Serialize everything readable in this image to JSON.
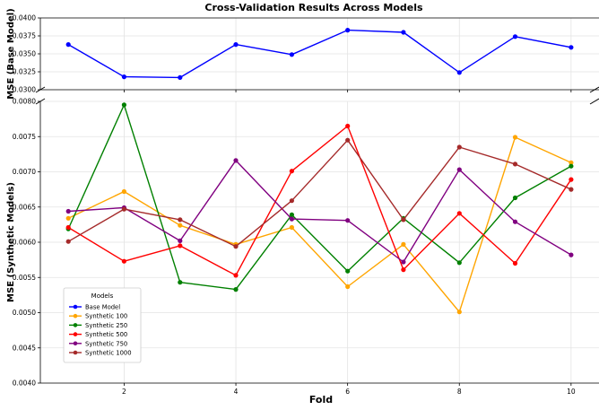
{
  "chart_data": {
    "type": "line",
    "title": "Cross-Validation Results Across Models",
    "xlabel": "Fold",
    "x": [
      1,
      2,
      3,
      4,
      5,
      6,
      7,
      8,
      9,
      10
    ],
    "xticks": [
      "2",
      "4",
      "6",
      "8",
      "10"
    ],
    "xtick_values": [
      2,
      4,
      6,
      8,
      10
    ],
    "xlim": [
      0.5,
      10.5
    ],
    "grid": true,
    "broken_axis": true,
    "panels": [
      {
        "ylabel": "MSE (Base Model)",
        "ylim": [
          0.03,
          0.04
        ],
        "yticks": [
          "0.0300",
          "0.0325",
          "0.0350",
          "0.0375",
          "0.0400"
        ],
        "ytick_values": [
          0.03,
          0.0325,
          0.035,
          0.0375,
          0.04
        ],
        "series": [
          {
            "name": "Base Model",
            "color": "#0000ff",
            "values": [
              0.0363,
              0.0318,
              0.0317,
              0.0363,
              0.0349,
              0.0383,
              0.038,
              0.0324,
              0.0374,
              0.0359
            ]
          }
        ]
      },
      {
        "ylabel": "MSE (Synthetic Models)",
        "ylim": [
          0.004,
          0.008
        ],
        "yticks": [
          "0.0040",
          "0.0045",
          "0.0050",
          "0.0055",
          "0.0060",
          "0.0065",
          "0.0070",
          "0.0075",
          "0.0080"
        ],
        "ytick_values": [
          0.004,
          0.0045,
          0.005,
          0.0055,
          0.006,
          0.0065,
          0.007,
          0.0075,
          0.008
        ],
        "series": [
          {
            "name": "Synthetic 100",
            "color": "#ffa500",
            "values": [
              0.00634,
              0.00672,
              0.00624,
              0.00597,
              0.00621,
              0.00537,
              0.00597,
              0.00501,
              0.00749,
              0.00713
            ]
          },
          {
            "name": "Synthetic 250",
            "color": "#008000",
            "values": [
              0.00619,
              0.00795,
              0.00543,
              0.00533,
              0.00639,
              0.00559,
              0.00634,
              0.00571,
              0.00663,
              0.00708
            ]
          },
          {
            "name": "Synthetic 500",
            "color": "#ff0000",
            "values": [
              0.00621,
              0.00573,
              0.00595,
              0.00553,
              0.00701,
              0.00765,
              0.00561,
              0.00641,
              0.0057,
              0.00689
            ]
          },
          {
            "name": "Synthetic 750",
            "color": "#800080",
            "values": [
              0.00644,
              0.00649,
              0.00602,
              0.00716,
              0.00633,
              0.00631,
              0.00572,
              0.00703,
              0.00629,
              0.00582
            ]
          },
          {
            "name": "Synthetic 1000",
            "color": "#a52a2a",
            "values": [
              0.00601,
              0.00647,
              0.00632,
              0.00594,
              0.00659,
              0.00745,
              0.00632,
              0.00735,
              0.00711,
              0.00675
            ]
          }
        ]
      }
    ],
    "legend": {
      "title": "Models",
      "placement": "lower-left",
      "entries": [
        "Base Model",
        "Synthetic 100",
        "Synthetic 250",
        "Synthetic 500",
        "Synthetic 750",
        "Synthetic 1000"
      ],
      "colors": [
        "#0000ff",
        "#ffa500",
        "#008000",
        "#ff0000",
        "#800080",
        "#a52a2a"
      ]
    }
  }
}
